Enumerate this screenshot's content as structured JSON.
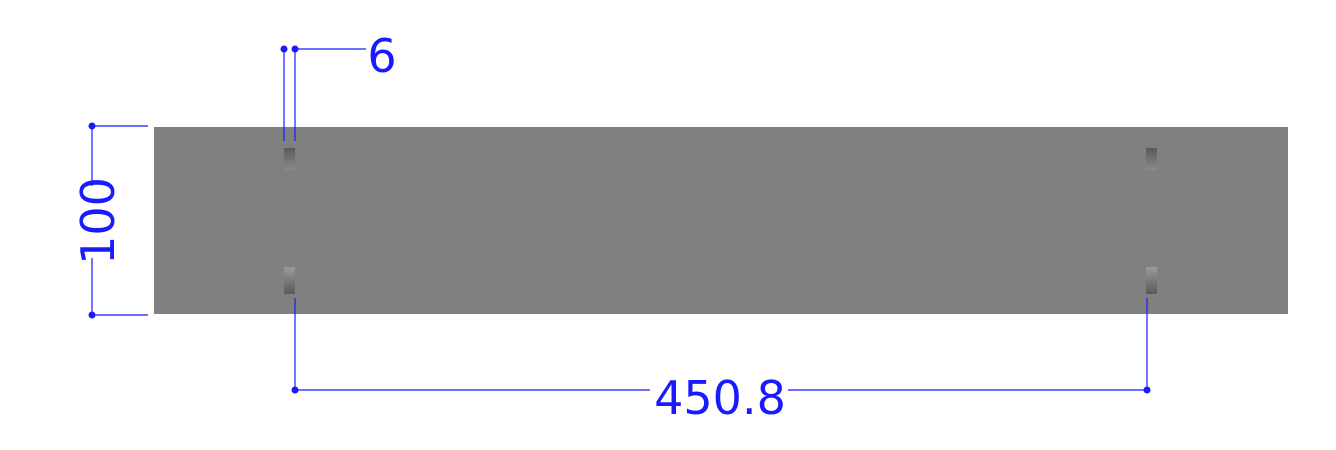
{
  "drawing": {
    "dimensions": {
      "height": "100",
      "slot_width": "6",
      "slot_spacing": "450.8"
    },
    "colors": {
      "dimension": "#1a1aff",
      "part_face": "#808080",
      "slot_dark": "#5a5a5a",
      "slot_light": "#9a9a9a"
    }
  }
}
